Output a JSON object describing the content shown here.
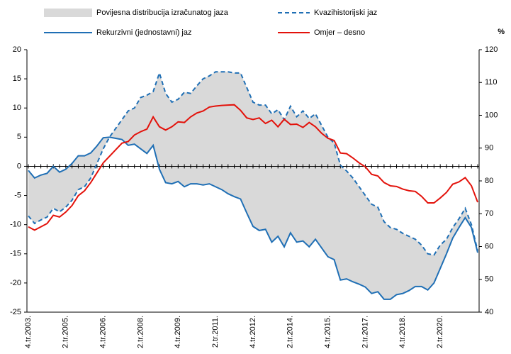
{
  "chart_data": {
    "type": "line",
    "y2_unit": "%",
    "categories": [
      "4.tr.2003.",
      null,
      null,
      null,
      null,
      null,
      "2.tr.2005.",
      null,
      null,
      null,
      null,
      null,
      "4.tr.2006.",
      null,
      null,
      null,
      null,
      null,
      "2.tr.2008.",
      null,
      null,
      null,
      null,
      null,
      "4.tr.2009.",
      null,
      null,
      null,
      null,
      null,
      "2.tr.2011.",
      null,
      null,
      null,
      null,
      null,
      "4.tr.2012.",
      null,
      null,
      null,
      null,
      null,
      "2.tr.2014.",
      null,
      null,
      null,
      null,
      null,
      "4.tr.2015.",
      null,
      null,
      null,
      null,
      null,
      "2.tr.2017.",
      null,
      null,
      null,
      null,
      null,
      "4.tr.2018.",
      null,
      null,
      null,
      null,
      null,
      "2.tr.2020.",
      null,
      null,
      null,
      null,
      null,
      null
    ],
    "series": [
      {
        "name": "Povijesna distribucija izračunatog jaza",
        "type": "band",
        "color": "#d9d9d9",
        "low": [
          -8.5,
          -9.8,
          -9.2,
          -8.7,
          -7.2,
          -7.8,
          -7.0,
          -5.8,
          -4.0,
          -3.5,
          -2.0,
          0.5,
          3.0,
          5.0,
          4.8,
          4.6,
          3.6,
          3.8,
          3.0,
          2.2,
          3.6,
          -0.5,
          -2.8,
          -3.0,
          -2.6,
          -3.5,
          -3.0,
          -3.0,
          -3.2,
          -3.0,
          -3.5,
          -4.0,
          -4.7,
          -5.2,
          -5.6,
          -8.0,
          -10.3,
          -11.0,
          -10.8,
          -13.0,
          -12.0,
          -13.8,
          -11.4,
          -13.0,
          -12.8,
          -13.8,
          -12.5,
          -14.0,
          -15.5,
          -16.0,
          -19.5,
          -19.3,
          -19.8,
          -20.2,
          -20.7,
          -21.8,
          -21.5,
          -22.8,
          -22.8,
          -22.0,
          -21.8,
          -21.3,
          -20.6,
          -20.6,
          -21.2,
          -20.0,
          -17.5,
          -15.0,
          -12.3,
          -10.5,
          -8.8,
          -10.5,
          -14.8
        ],
        "high": [
          -0.7,
          -2.0,
          -1.5,
          -1.2,
          0,
          -1.0,
          -0.5,
          0.5,
          1.8,
          1.8,
          2.3,
          3.5,
          4.9,
          5.0,
          6.5,
          8.0,
          9.5,
          10.0,
          11.8,
          12.2,
          12.8,
          16.0,
          12.5,
          11.0,
          11.5,
          12.7,
          12.5,
          13.8,
          15.0,
          15.5,
          16.2,
          16.2,
          16.2,
          16.0,
          16.0,
          13.5,
          11.0,
          10.5,
          10.5,
          9.0,
          9.7,
          8.0,
          10.3,
          8.5,
          9.5,
          8.2,
          9.0,
          7.0,
          5.0,
          4.0,
          0.2,
          -0.8,
          -2.0,
          -3.5,
          -5.0,
          -6.5,
          -7.0,
          -9.5,
          -10.5,
          -10.8,
          -11.5,
          -12.0,
          -12.5,
          -13.5,
          -15.0,
          -15.2,
          -13.5,
          -12.5,
          -10.5,
          -9.0,
          -7.2,
          -10.0,
          -14.5
        ]
      },
      {
        "name": "Kvazihistorijski jaz",
        "color": "#1f6fb5",
        "dashed": true,
        "values": [
          -8.5,
          -9.8,
          -9.2,
          -8.7,
          -7.2,
          -7.8,
          -7.0,
          -5.8,
          -4.0,
          -3.5,
          -2.0,
          0.5,
          3.0,
          5.0,
          6.5,
          8.0,
          9.5,
          10.0,
          11.8,
          12.2,
          12.8,
          16.0,
          12.5,
          11.0,
          11.5,
          12.7,
          12.5,
          13.8,
          15.0,
          15.5,
          16.2,
          16.2,
          16.2,
          16.0,
          16.0,
          13.5,
          11.0,
          10.5,
          10.5,
          9.0,
          9.7,
          8.0,
          10.3,
          8.5,
          9.5,
          8.2,
          9.0,
          7.0,
          5.0,
          4.0,
          0.2,
          -0.8,
          -2.0,
          -3.5,
          -5.0,
          -6.5,
          -7.0,
          -9.5,
          -10.5,
          -10.8,
          -11.5,
          -12.0,
          -12.5,
          -13.5,
          -15.0,
          -15.2,
          -13.5,
          -12.5,
          -10.5,
          -9.0,
          -7.2,
          -10.0,
          -14.5
        ]
      },
      {
        "name": "Rekurzivni (jednostavni) jaz",
        "color": "#1f6fb5",
        "values": [
          -0.7,
          -2.0,
          -1.5,
          -1.2,
          0,
          -1.0,
          -0.5,
          0.5,
          1.8,
          1.8,
          2.3,
          3.5,
          4.9,
          5.0,
          4.8,
          4.6,
          3.6,
          3.8,
          3.0,
          2.2,
          3.6,
          -0.5,
          -2.8,
          -3.0,
          -2.6,
          -3.5,
          -3.0,
          -3.0,
          -3.2,
          -3.0,
          -3.5,
          -4.0,
          -4.7,
          -5.2,
          -5.6,
          -8.0,
          -10.3,
          -11.0,
          -10.8,
          -13.0,
          -12.0,
          -13.8,
          -11.4,
          -13.0,
          -12.8,
          -13.8,
          -12.5,
          -14.0,
          -15.5,
          -16.0,
          -19.5,
          -19.3,
          -19.8,
          -20.2,
          -20.7,
          -21.8,
          -21.5,
          -22.8,
          -22.8,
          -22.0,
          -21.8,
          -21.3,
          -20.6,
          -20.6,
          -21.2,
          -20.0,
          -17.5,
          -15.0,
          -12.3,
          -10.5,
          -8.8,
          -10.5,
          -14.8
        ]
      },
      {
        "name": "Omjer – desno",
        "color": "#e3120b",
        "axis": "y2",
        "values": [
          66,
          65,
          66,
          67,
          69.5,
          69,
          70.5,
          72.5,
          75.5,
          77,
          79.5,
          82.5,
          85.5,
          87.5,
          89.5,
          91.5,
          92,
          94,
          95,
          95.8,
          99.5,
          96.5,
          95.5,
          96.5,
          98,
          97.8,
          99.5,
          100.7,
          101.3,
          102.5,
          102.8,
          103,
          103.1,
          103.2,
          101.5,
          99.2,
          98.7,
          99.2,
          97.5,
          98.5,
          96.5,
          98.8,
          97.2,
          97.3,
          96.3,
          97.8,
          96.5,
          94.5,
          93,
          92.3,
          88.5,
          88.3,
          87,
          85.5,
          84.3,
          82,
          81.5,
          79.5,
          78.5,
          78.3,
          77.5,
          77,
          76.8,
          75.3,
          73.3,
          73.3,
          74.8,
          76.5,
          79,
          79.7,
          81,
          78.5,
          73.5
        ]
      }
    ],
    "ylim": [
      -25,
      20
    ],
    "yticks": [
      -25,
      -20,
      -15,
      -10,
      -5,
      0,
      5,
      10,
      15,
      20
    ],
    "y2lim": [
      40,
      120
    ],
    "y2ticks": [
      40,
      50,
      60,
      70,
      80,
      90,
      100,
      110,
      120
    ]
  }
}
